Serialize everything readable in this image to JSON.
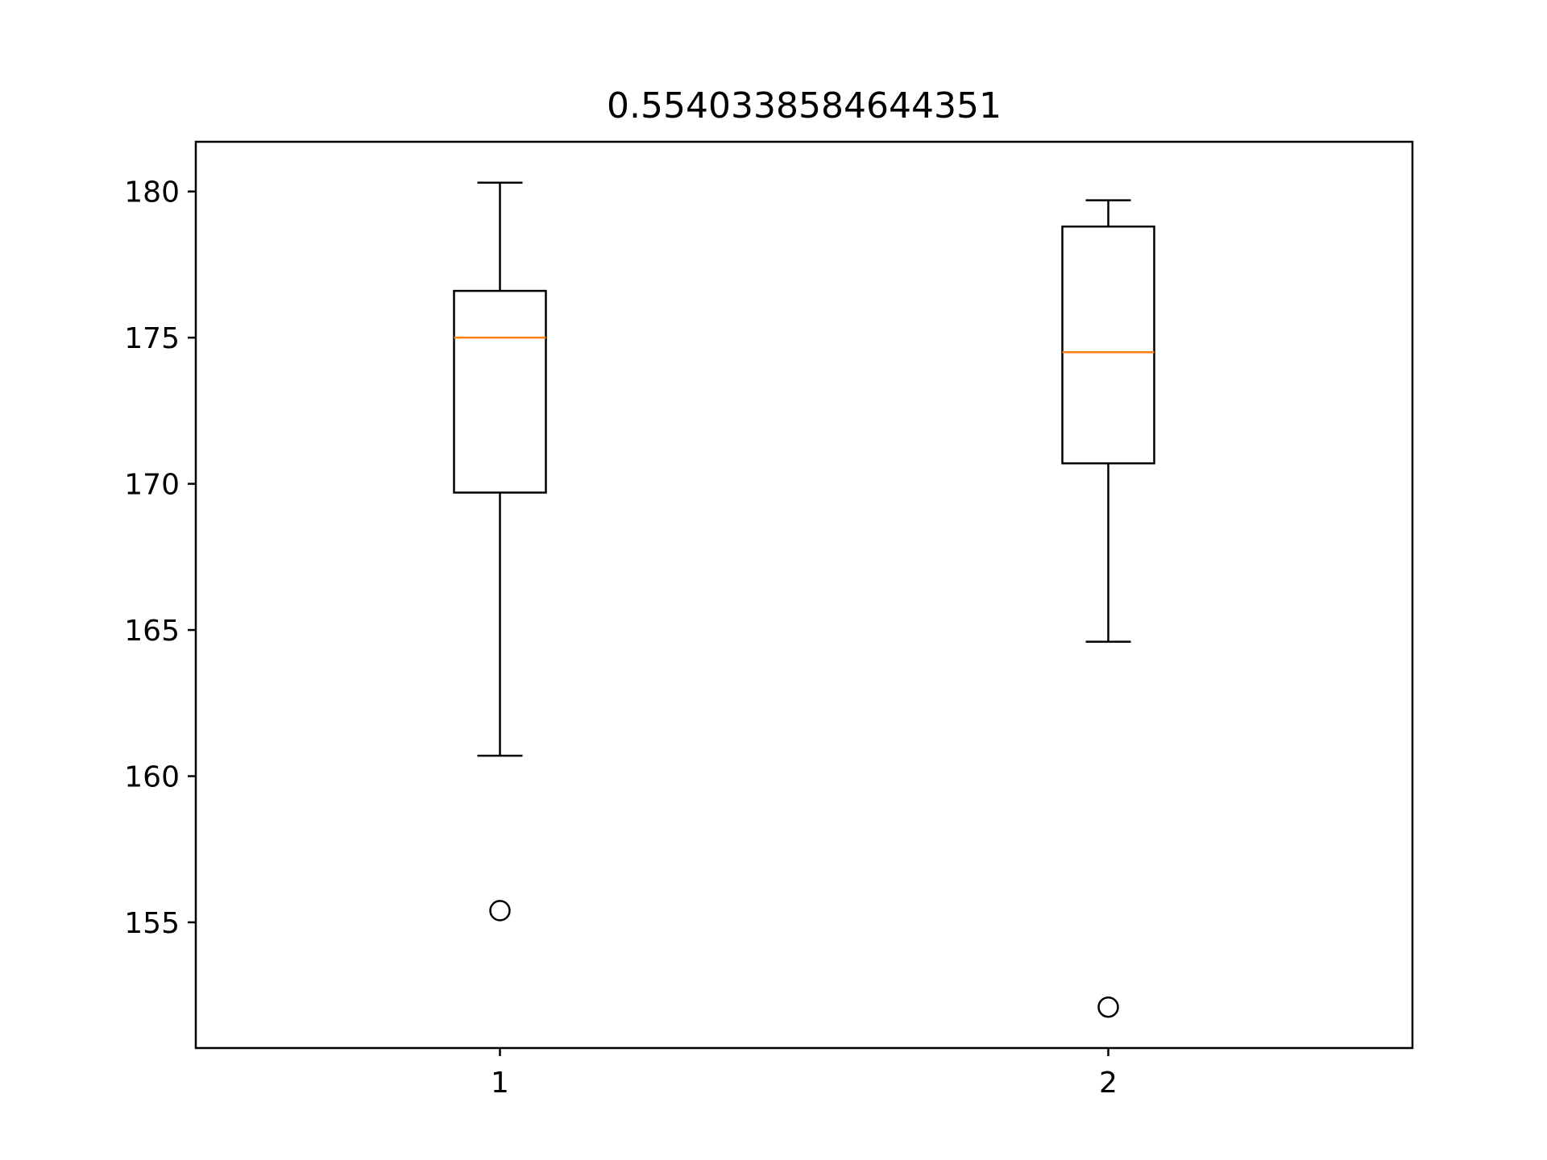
{
  "chart_data": {
    "type": "box",
    "title": "0.5540338584644351",
    "xlabel": "",
    "ylabel": "",
    "categories": [
      "1",
      "2"
    ],
    "ylim": [
      150.7,
      181.7
    ],
    "yticks": [
      155,
      160,
      165,
      170,
      175,
      180
    ],
    "grid": false,
    "boxes": [
      {
        "category": "1",
        "whisker_low": 160.7,
        "q1": 169.7,
        "median": 175.0,
        "q3": 176.6,
        "whisker_high": 180.3,
        "outliers": [
          155.4
        ]
      },
      {
        "category": "2",
        "whisker_low": 164.6,
        "q1": 170.7,
        "median": 174.5,
        "q3": 178.8,
        "whisker_high": 179.7,
        "outliers": [
          152.1
        ]
      }
    ],
    "colors": {
      "box": "#000000",
      "median": "#ff7f0e",
      "axes": "#000000",
      "background": "#ffffff"
    }
  }
}
